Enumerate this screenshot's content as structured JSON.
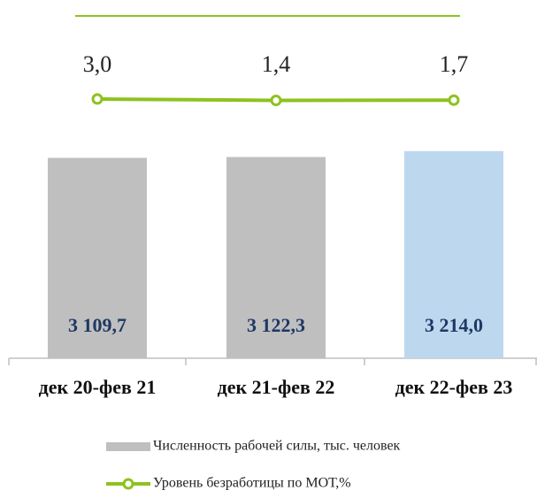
{
  "chart_data": {
    "type": "bar-line",
    "categories": [
      "дек 20-фев 21",
      "дек 21-фев 22",
      "дек 22-фев 23"
    ],
    "series": [
      {
        "name": "Численность рабочей силы, тыс. человек",
        "type": "bar",
        "colors": [
          "#bfbfbf",
          "#bfbfbf",
          "#bdd7ee"
        ],
        "color": "#bfbfbf",
        "values": [
          3109.7,
          3122.3,
          3214.0
        ],
        "value_labels": [
          "3 109,7",
          "3 122,3",
          "3 214,0"
        ]
      },
      {
        "name": "Уровень безработицы по МОТ,%",
        "type": "line",
        "axis": "y2",
        "color": "#8dc21f",
        "values": [
          3.0,
          1.4,
          1.7
        ],
        "value_labels": [
          "3,0",
          "1,4",
          "1,7"
        ]
      }
    ],
    "ylim": [
      0,
      3500
    ],
    "y2lim": [
      -300,
      5
    ]
  }
}
